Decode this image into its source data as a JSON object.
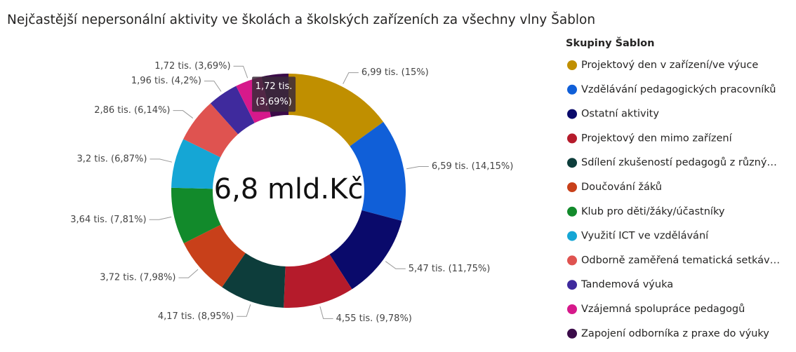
{
  "chart_data": {
    "type": "donut",
    "title": "Nejčastější nepersonální aktivity ve školách a školských zařízeních za všechny vlny Šablon",
    "center_label": "6,8 mld.Kč",
    "legend_title": "Skupiny Šablon",
    "categories": [
      "Projektový den v zařízení/ve výuce",
      "Vzdělávání pedagogických pracovníků",
      "Ostatní aktivity",
      "Projektový den mimo zařízení",
      "Sdílení zkušeností pedagogů z různý…",
      "Doučování žáků",
      "Klub pro děti/žáky/účastníky",
      "Využití ICT ve vzdělávání",
      "Odborně zaměřená tematická setkáv…",
      "Tandemová výuka",
      "Vzájemná spolupráce pedagogů",
      "Zapojení odborníka z praxe do výuky"
    ],
    "values": [
      6.99,
      6.59,
      5.47,
      4.55,
      4.17,
      3.72,
      3.64,
      3.2,
      2.86,
      1.96,
      1.72,
      1.72
    ],
    "value_labels": [
      "6,99 tis. (15%)",
      "6,59 tis. (14,15%)",
      "5,47 tis. (11,75%)",
      "4,55 tis. (9,78%)",
      "4,17 tis. (8,95%)",
      "3,72 tis. (7,98%)",
      "3,64 tis. (7,81%)",
      "3,2 tis. (6,87%)",
      "2,86 tis. (6,14%)",
      "1,96 tis. (4,2%)",
      "1,72 tis. (3,69%)",
      null
    ],
    "colors": [
      "#c08f00",
      "#105fd8",
      "#0a0a6b",
      "#b51b2b",
      "#0d3d3b",
      "#c8401a",
      "#128a2b",
      "#15a6d5",
      "#df5350",
      "#3f2a9d",
      "#d6198b",
      "#3b0b49"
    ],
    "tooltip": [
      "1,72 tis.",
      "(3,69%)"
    ],
    "legend": "right"
  }
}
